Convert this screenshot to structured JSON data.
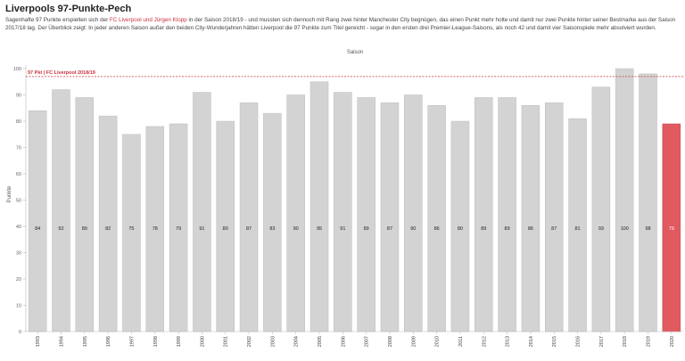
{
  "header": {
    "title": "Liverpools 97-Punkte-Pech",
    "subtitle_part1": "Sagenhafte 97 Punkte erspielten sich der ",
    "subtitle_highlight": "FC Liverpool und Jürgen Klopp",
    "subtitle_part2": " in der Saison 2018/19 - und mussten sich dennoch mit Rang zwei hinter Manchester City begnügen, das einen Punkt mehr holte und damit nur zwei Punkte hinter seiner Bestmarke aus der Saison 2017/18 lag. Der Überblick zeigt: In jeder anderen Saison außer den beiden City-Wunderjahren hätten Liverpool die 97 Punkte zum Titel gereicht - sogar in den ersten drei Premier-League-Saisons, als noch 42 und damit vier Saisonspiele mehr absolviert wurden."
  },
  "colors": {
    "bar": "#d3d3d3",
    "bar_highlight": "#e05a5f",
    "reference": "#c8323c"
  },
  "chart_data": {
    "type": "bar",
    "title": "Saison",
    "xlabel": "",
    "ylabel": "Punkte",
    "ylim": [
      0,
      100
    ],
    "yticks": [
      0,
      10,
      20,
      30,
      40,
      50,
      60,
      70,
      80,
      90,
      100
    ],
    "categories": [
      "1993",
      "1994",
      "1995",
      "1996",
      "1997",
      "1998",
      "1999",
      "2000",
      "2001",
      "2002",
      "2003",
      "2004",
      "2005",
      "2006",
      "2007",
      "2008",
      "2009",
      "2010",
      "2011",
      "2012",
      "2013",
      "2014",
      "2015",
      "2016",
      "2017",
      "2018",
      "2019",
      "2020"
    ],
    "values": [
      84,
      92,
      89,
      82,
      75,
      78,
      79,
      91,
      80,
      87,
      83,
      90,
      95,
      91,
      89,
      87,
      90,
      86,
      80,
      89,
      89,
      86,
      87,
      81,
      93,
      100,
      98,
      79
    ],
    "highlight_category": "2020",
    "reference_line": {
      "value": 97,
      "label": "97 Pkt | FC Liverpool 2018/19"
    },
    "grid": false
  }
}
